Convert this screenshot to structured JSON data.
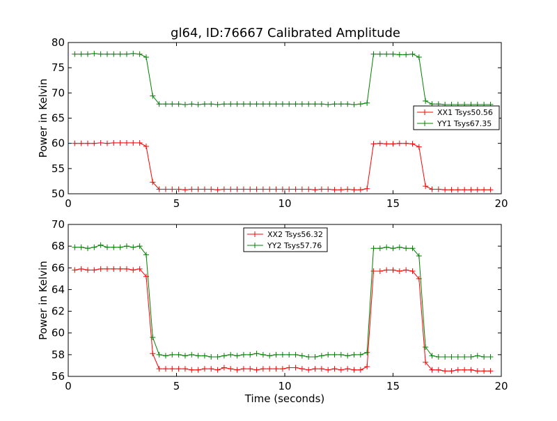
{
  "title": "gl64, ID:76667 Calibrated Amplitude",
  "chart_data": [
    {
      "type": "line",
      "ylabel": "Power in Kelvin",
      "xlabel": "",
      "xlim": [
        0,
        20
      ],
      "ylim": [
        50,
        80
      ],
      "xticks": [
        0,
        5,
        10,
        15,
        20
      ],
      "yticks": [
        50,
        55,
        60,
        65,
        70,
        75,
        80
      ],
      "legend_position": "center-right",
      "series": [
        {
          "name": "XX1 Tsys50.56",
          "color": "#ff0000",
          "points": [
            [
              0.3,
              60.0
            ],
            [
              0.6,
              60.0
            ],
            [
              0.9,
              60.0
            ],
            [
              1.2,
              60.0
            ],
            [
              1.5,
              60.1
            ],
            [
              1.8,
              60.0
            ],
            [
              2.1,
              60.1
            ],
            [
              2.4,
              60.1
            ],
            [
              2.7,
              60.1
            ],
            [
              3.0,
              60.1
            ],
            [
              3.3,
              60.1
            ],
            [
              3.6,
              59.4
            ],
            [
              3.9,
              52.3
            ],
            [
              4.2,
              50.9
            ],
            [
              4.5,
              50.9
            ],
            [
              4.8,
              50.9
            ],
            [
              5.1,
              50.9
            ],
            [
              5.4,
              50.8
            ],
            [
              5.7,
              50.9
            ],
            [
              6.0,
              50.9
            ],
            [
              6.3,
              50.9
            ],
            [
              6.6,
              50.9
            ],
            [
              6.9,
              50.8
            ],
            [
              7.2,
              50.9
            ],
            [
              7.5,
              50.9
            ],
            [
              7.8,
              50.9
            ],
            [
              8.1,
              50.9
            ],
            [
              8.4,
              50.9
            ],
            [
              8.7,
              50.9
            ],
            [
              9.0,
              50.9
            ],
            [
              9.3,
              50.9
            ],
            [
              9.6,
              50.9
            ],
            [
              9.9,
              50.9
            ],
            [
              10.2,
              50.9
            ],
            [
              10.5,
              50.9
            ],
            [
              10.8,
              50.9
            ],
            [
              11.1,
              50.9
            ],
            [
              11.4,
              50.8
            ],
            [
              11.7,
              50.9
            ],
            [
              12.0,
              50.9
            ],
            [
              12.3,
              50.8
            ],
            [
              12.6,
              50.8
            ],
            [
              12.9,
              50.9
            ],
            [
              13.2,
              50.8
            ],
            [
              13.5,
              50.8
            ],
            [
              13.8,
              51.0
            ],
            [
              14.1,
              59.9
            ],
            [
              14.4,
              60.0
            ],
            [
              14.7,
              59.9
            ],
            [
              15.0,
              59.9
            ],
            [
              15.3,
              60.0
            ],
            [
              15.6,
              60.0
            ],
            [
              15.9,
              59.9
            ],
            [
              16.2,
              59.3
            ],
            [
              16.5,
              51.5
            ],
            [
              16.8,
              50.9
            ],
            [
              17.1,
              50.9
            ],
            [
              17.4,
              50.8
            ],
            [
              17.7,
              50.8
            ],
            [
              18.0,
              50.8
            ],
            [
              18.3,
              50.8
            ],
            [
              18.6,
              50.8
            ],
            [
              18.9,
              50.8
            ],
            [
              19.2,
              50.8
            ],
            [
              19.5,
              50.8
            ]
          ]
        },
        {
          "name": "YY1 Tsys67.35",
          "color": "#008000",
          "points": [
            [
              0.3,
              77.7
            ],
            [
              0.6,
              77.7
            ],
            [
              0.9,
              77.7
            ],
            [
              1.2,
              77.8
            ],
            [
              1.5,
              77.7
            ],
            [
              1.8,
              77.7
            ],
            [
              2.1,
              77.7
            ],
            [
              2.4,
              77.7
            ],
            [
              2.7,
              77.7
            ],
            [
              3.0,
              77.8
            ],
            [
              3.3,
              77.7
            ],
            [
              3.6,
              77.1
            ],
            [
              3.9,
              69.4
            ],
            [
              4.2,
              67.8
            ],
            [
              4.5,
              67.8
            ],
            [
              4.8,
              67.8
            ],
            [
              5.1,
              67.8
            ],
            [
              5.4,
              67.7
            ],
            [
              5.7,
              67.8
            ],
            [
              6.0,
              67.7
            ],
            [
              6.3,
              67.8
            ],
            [
              6.6,
              67.8
            ],
            [
              6.9,
              67.7
            ],
            [
              7.2,
              67.8
            ],
            [
              7.5,
              67.8
            ],
            [
              7.8,
              67.8
            ],
            [
              8.1,
              67.8
            ],
            [
              8.4,
              67.8
            ],
            [
              8.7,
              67.8
            ],
            [
              9.0,
              67.8
            ],
            [
              9.3,
              67.8
            ],
            [
              9.6,
              67.8
            ],
            [
              9.9,
              67.8
            ],
            [
              10.2,
              67.8
            ],
            [
              10.5,
              67.8
            ],
            [
              10.8,
              67.8
            ],
            [
              11.1,
              67.8
            ],
            [
              11.4,
              67.8
            ],
            [
              11.7,
              67.8
            ],
            [
              12.0,
              67.7
            ],
            [
              12.3,
              67.8
            ],
            [
              12.6,
              67.8
            ],
            [
              12.9,
              67.8
            ],
            [
              13.2,
              67.7
            ],
            [
              13.5,
              67.8
            ],
            [
              13.8,
              68.0
            ],
            [
              14.1,
              77.7
            ],
            [
              14.4,
              77.7
            ],
            [
              14.7,
              77.7
            ],
            [
              15.0,
              77.7
            ],
            [
              15.3,
              77.6
            ],
            [
              15.6,
              77.6
            ],
            [
              15.9,
              77.7
            ],
            [
              16.2,
              77.1
            ],
            [
              16.5,
              68.4
            ],
            [
              16.8,
              67.8
            ],
            [
              17.1,
              67.8
            ],
            [
              17.4,
              67.7
            ],
            [
              17.7,
              67.7
            ],
            [
              18.0,
              67.7
            ],
            [
              18.3,
              67.7
            ],
            [
              18.6,
              67.7
            ],
            [
              18.9,
              67.7
            ],
            [
              19.2,
              67.7
            ],
            [
              19.5,
              67.7
            ]
          ]
        }
      ]
    },
    {
      "type": "line",
      "ylabel": "Power in Kelvin",
      "xlabel": "Time (seconds)",
      "xlim": [
        0,
        20
      ],
      "ylim": [
        56,
        70
      ],
      "xticks": [
        0,
        5,
        10,
        15,
        20
      ],
      "yticks": [
        56,
        58,
        60,
        62,
        64,
        66,
        68,
        70
      ],
      "legend_position": "upper-center",
      "series": [
        {
          "name": "XX2 Tsys56.32",
          "color": "#ff0000",
          "points": [
            [
              0.3,
              65.8
            ],
            [
              0.6,
              65.9
            ],
            [
              0.9,
              65.8
            ],
            [
              1.2,
              65.8
            ],
            [
              1.5,
              65.9
            ],
            [
              1.8,
              65.9
            ],
            [
              2.1,
              65.9
            ],
            [
              2.4,
              65.9
            ],
            [
              2.7,
              65.9
            ],
            [
              3.0,
              65.8
            ],
            [
              3.3,
              65.9
            ],
            [
              3.6,
              65.2
            ],
            [
              3.9,
              58.1
            ],
            [
              4.2,
              56.7
            ],
            [
              4.5,
              56.7
            ],
            [
              4.8,
              56.7
            ],
            [
              5.1,
              56.7
            ],
            [
              5.4,
              56.7
            ],
            [
              5.7,
              56.6
            ],
            [
              6.0,
              56.6
            ],
            [
              6.3,
              56.7
            ],
            [
              6.6,
              56.7
            ],
            [
              6.9,
              56.6
            ],
            [
              7.2,
              56.8
            ],
            [
              7.5,
              56.7
            ],
            [
              7.8,
              56.6
            ],
            [
              8.1,
              56.7
            ],
            [
              8.4,
              56.7
            ],
            [
              8.7,
              56.6
            ],
            [
              9.0,
              56.7
            ],
            [
              9.3,
              56.7
            ],
            [
              9.6,
              56.7
            ],
            [
              9.9,
              56.7
            ],
            [
              10.2,
              56.8
            ],
            [
              10.5,
              56.8
            ],
            [
              10.8,
              56.7
            ],
            [
              11.1,
              56.6
            ],
            [
              11.4,
              56.7
            ],
            [
              11.7,
              56.7
            ],
            [
              12.0,
              56.6
            ],
            [
              12.3,
              56.7
            ],
            [
              12.6,
              56.6
            ],
            [
              12.9,
              56.7
            ],
            [
              13.2,
              56.6
            ],
            [
              13.5,
              56.6
            ],
            [
              13.8,
              56.9
            ],
            [
              14.1,
              65.7
            ],
            [
              14.4,
              65.7
            ],
            [
              14.7,
              65.8
            ],
            [
              15.0,
              65.8
            ],
            [
              15.3,
              65.7
            ],
            [
              15.6,
              65.8
            ],
            [
              15.9,
              65.7
            ],
            [
              16.2,
              65.0
            ],
            [
              16.5,
              57.3
            ],
            [
              16.8,
              56.6
            ],
            [
              17.1,
              56.6
            ],
            [
              17.4,
              56.5
            ],
            [
              17.7,
              56.5
            ],
            [
              18.0,
              56.6
            ],
            [
              18.3,
              56.6
            ],
            [
              18.6,
              56.6
            ],
            [
              18.9,
              56.5
            ],
            [
              19.2,
              56.5
            ],
            [
              19.5,
              56.5
            ]
          ]
        },
        {
          "name": "YY2 Tsys57.76",
          "color": "#008000",
          "points": [
            [
              0.3,
              67.9
            ],
            [
              0.6,
              67.9
            ],
            [
              0.9,
              67.8
            ],
            [
              1.2,
              67.9
            ],
            [
              1.5,
              68.1
            ],
            [
              1.8,
              67.9
            ],
            [
              2.1,
              67.9
            ],
            [
              2.4,
              67.9
            ],
            [
              2.7,
              68.0
            ],
            [
              3.0,
              67.9
            ],
            [
              3.3,
              68.0
            ],
            [
              3.6,
              67.2
            ],
            [
              3.9,
              59.6
            ],
            [
              4.2,
              58.0
            ],
            [
              4.5,
              57.9
            ],
            [
              4.8,
              58.0
            ],
            [
              5.1,
              58.0
            ],
            [
              5.4,
              57.9
            ],
            [
              5.7,
              58.0
            ],
            [
              6.0,
              57.9
            ],
            [
              6.3,
              57.9
            ],
            [
              6.6,
              57.8
            ],
            [
              6.9,
              57.8
            ],
            [
              7.2,
              57.9
            ],
            [
              7.5,
              58.0
            ],
            [
              7.8,
              57.9
            ],
            [
              8.1,
              58.0
            ],
            [
              8.4,
              58.0
            ],
            [
              8.7,
              58.1
            ],
            [
              9.0,
              58.0
            ],
            [
              9.3,
              57.9
            ],
            [
              9.6,
              58.0
            ],
            [
              9.9,
              58.0
            ],
            [
              10.2,
              58.0
            ],
            [
              10.5,
              58.0
            ],
            [
              10.8,
              57.9
            ],
            [
              11.1,
              57.8
            ],
            [
              11.4,
              57.8
            ],
            [
              11.7,
              57.9
            ],
            [
              12.0,
              58.0
            ],
            [
              12.3,
              58.0
            ],
            [
              12.6,
              58.0
            ],
            [
              12.9,
              57.9
            ],
            [
              13.2,
              58.0
            ],
            [
              13.5,
              58.0
            ],
            [
              13.8,
              58.2
            ],
            [
              14.1,
              67.8
            ],
            [
              14.4,
              67.8
            ],
            [
              14.7,
              67.9
            ],
            [
              15.0,
              67.8
            ],
            [
              15.3,
              67.9
            ],
            [
              15.6,
              67.8
            ],
            [
              15.9,
              67.8
            ],
            [
              16.2,
              67.1
            ],
            [
              16.5,
              58.7
            ],
            [
              16.8,
              57.9
            ],
            [
              17.1,
              57.8
            ],
            [
              17.4,
              57.8
            ],
            [
              17.7,
              57.8
            ],
            [
              18.0,
              57.8
            ],
            [
              18.3,
              57.8
            ],
            [
              18.6,
              57.8
            ],
            [
              18.9,
              57.9
            ],
            [
              19.2,
              57.8
            ],
            [
              19.5,
              57.8
            ]
          ]
        }
      ]
    }
  ]
}
